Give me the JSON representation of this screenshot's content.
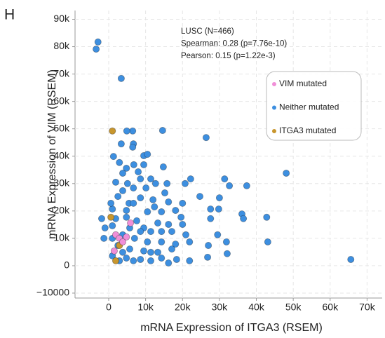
{
  "chart_data": {
    "type": "scatter",
    "panel_label": "H",
    "x_label": "mRNA Expression of ITGA3 (RSEM)",
    "y_label": "mRNA Expression of VIM (RSEM)",
    "annotations": [
      "LUSC (N=466)",
      "Spearman: 0.28 (p=7.76e-10)",
      "Pearson: 0.15 (p=1.22e-3)"
    ],
    "xlim": [
      -9120,
      74100
    ],
    "ylim": [
      -11800,
      93200
    ],
    "xticks": [
      0,
      {
        "value": 10000,
        "label": "10k"
      },
      {
        "value": 20000,
        "label": "20k"
      },
      {
        "value": 30000,
        "label": "30k"
      },
      {
        "value": 40000,
        "label": "40k"
      },
      {
        "value": 50000,
        "label": "50k"
      },
      {
        "value": 60000,
        "label": "60k"
      },
      {
        "value": 70000,
        "label": "70k"
      }
    ],
    "yticks": [
      {
        "value": -10000,
        "label": "−10000"
      },
      0,
      {
        "value": 10000,
        "label": "10k"
      },
      {
        "value": 20000,
        "label": "20k"
      },
      {
        "value": 30000,
        "label": "30k"
      },
      {
        "value": 40000,
        "label": "40k"
      },
      {
        "value": 50000,
        "label": "50k"
      },
      {
        "value": 60000,
        "label": "60k"
      },
      {
        "value": 70000,
        "label": "70k"
      },
      {
        "value": 80000,
        "label": "80k"
      },
      {
        "value": 90000,
        "label": "90k"
      }
    ],
    "grid": true,
    "legend": "upper right",
    "series": [
      {
        "name": "Neither mutated",
        "color": "#3d8fe0",
        "x": [
          -2900,
          -3400,
          3400,
          14600,
          26400,
          48100,
          6500,
          4900,
          6700,
          6500,
          1300,
          9500,
          14800,
          10500,
          4800,
          6800,
          3800,
          8000,
          8600,
          11400,
          1900,
          5100,
          12700,
          15800,
          6700,
          10100,
          3800,
          20700,
          22200,
          31400,
          37400,
          32700,
          24700,
          30000,
          2500,
          8600,
          12000,
          16200,
          5500,
          1000,
          4800,
          10500,
          14300,
          18100,
          27600,
          29800,
          36100,
          42800,
          36500,
          19600,
          4800,
          7600,
          13300,
          16200,
          20000,
          1000,
          9500,
          11400,
          17100,
          20900,
          27600,
          29500,
          43100,
          3800,
          7000,
          10500,
          14300,
          18100,
          21900,
          31900,
          27000,
          2500,
          5700,
          9500,
          13300,
          17100,
          1000,
          4800,
          8600,
          11400,
          14300,
          18400,
          26800,
          32100,
          65600,
          -1900,
          -1000,
          1000,
          5700,
          12400,
          15200,
          1900,
          6700,
          8600,
          20000,
          3800,
          -1300,
          600,
          6700,
          16200,
          21900,
          14300,
          3400,
          11400,
          2900,
          2900,
          9500
        ],
        "y": [
          81700,
          79100,
          68400,
          49400,
          46800,
          33800,
          49200,
          49200,
          44500,
          43300,
          39900,
          40200,
          36100,
          40700,
          35600,
          36900,
          33800,
          34300,
          31700,
          31700,
          30500,
          30000,
          30000,
          30000,
          28400,
          28400,
          27400,
          30000,
          31700,
          31700,
          29200,
          29200,
          25300,
          24800,
          25300,
          24800,
          24100,
          23300,
          22800,
          20700,
          20200,
          19700,
          19700,
          20200,
          20700,
          20700,
          18900,
          17700,
          17200,
          17700,
          17700,
          16400,
          15600,
          15100,
          15100,
          14600,
          13800,
          12500,
          12500,
          11300,
          17200,
          11300,
          8700,
          11300,
          10000,
          8700,
          8700,
          7900,
          8700,
          8700,
          7400,
          7400,
          6100,
          5400,
          4900,
          6100,
          3600,
          2800,
          2300,
          1800,
          2800,
          2300,
          3100,
          4400,
          2300,
          17200,
          13800,
          10000,
          13800,
          21500,
          26600,
          17200,
          22800,
          12500,
          22800,
          4900,
          10000,
          22800,
          1800,
          1000,
          1800,
          12500,
          44500,
          4900,
          1800,
          37700,
          36900
        ]
      },
      {
        "name": "ITGA3 mutated",
        "color": "#c8962d",
        "x": [
          1000,
          600,
          1900,
          2900
        ],
        "y": [
          49200,
          17700,
          1800,
          7400
        ]
      },
      {
        "name": "VIM mutated",
        "color": "#f08fd8",
        "x": [
          1900,
          2900,
          1500,
          4800,
          5900,
          3800
        ],
        "y": [
          11300,
          10000,
          5400,
          10500,
          15600,
          8700
        ]
      }
    ]
  }
}
